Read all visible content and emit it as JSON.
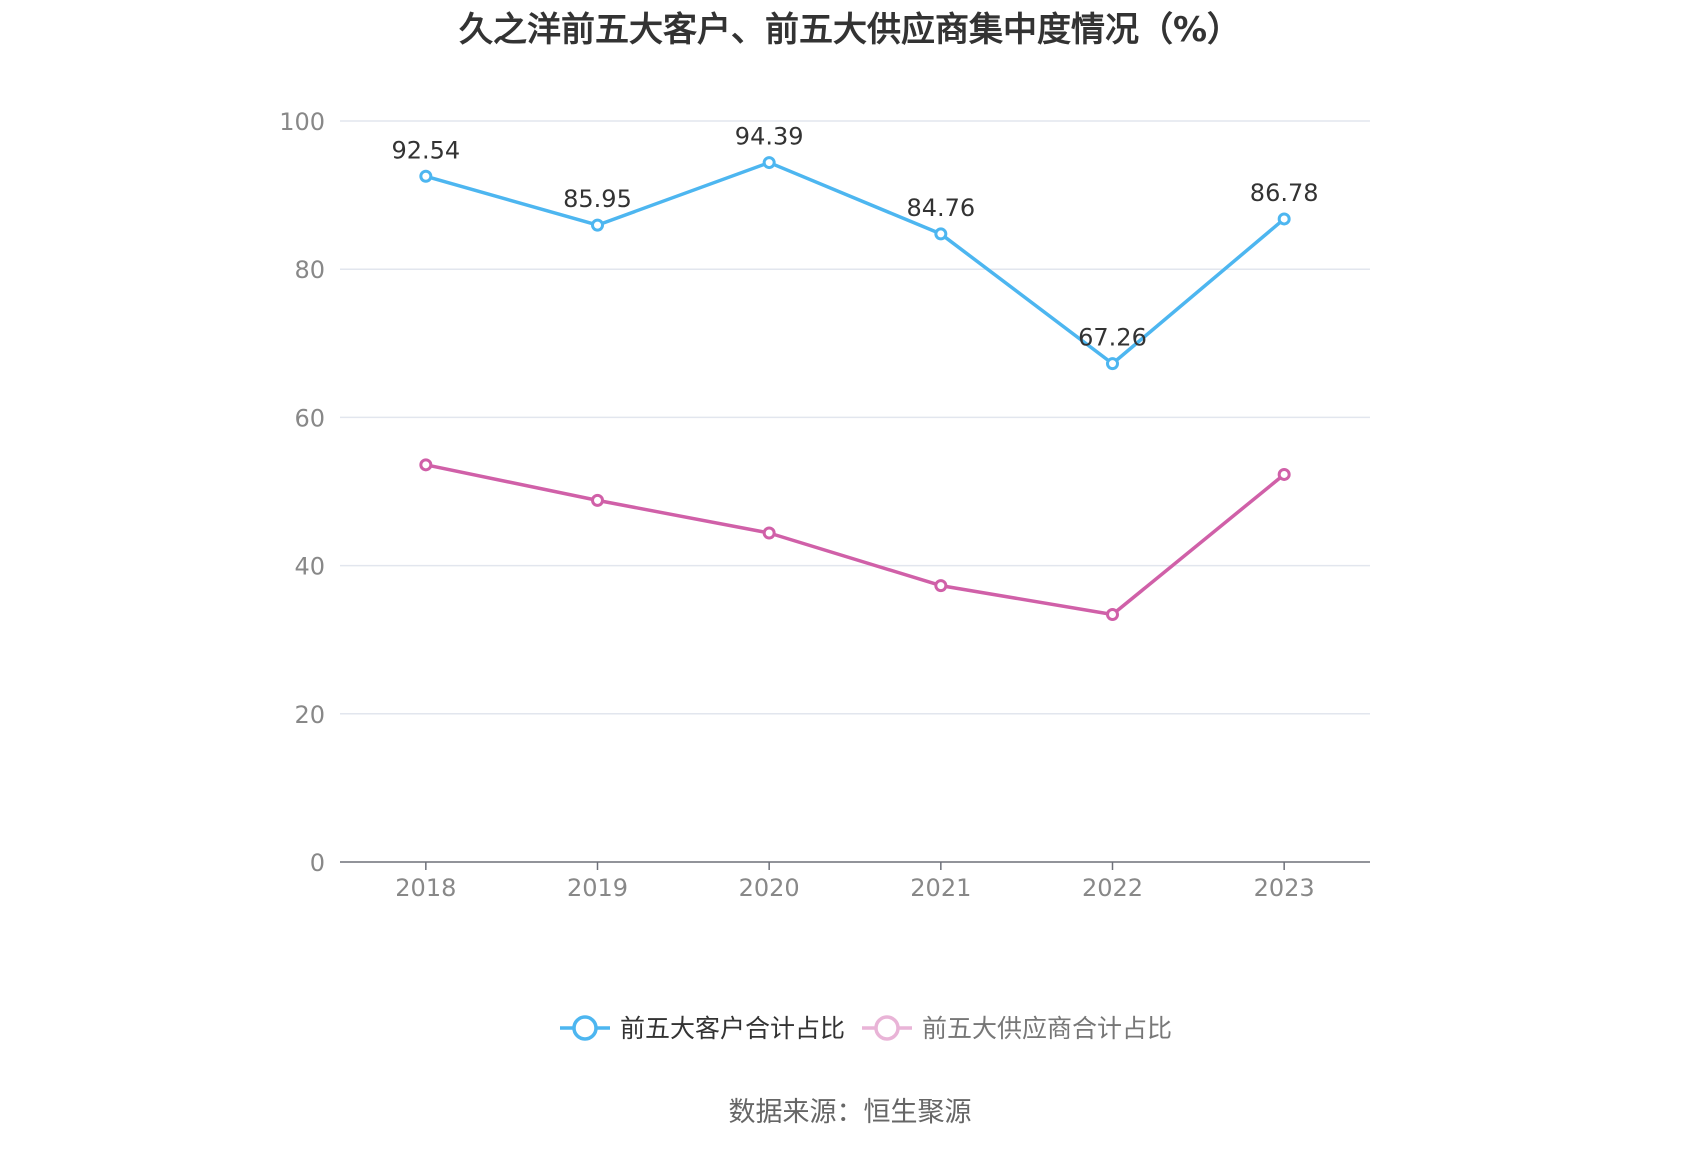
{
  "chart_data": {
    "type": "line",
    "title": "久之洋前五大客户、前五大供应商集中度情况（%）",
    "categories": [
      "2018",
      "2019",
      "2020",
      "2021",
      "2022",
      "2023"
    ],
    "ylim": [
      0,
      100
    ],
    "yticks": [
      0,
      20,
      40,
      60,
      80,
      100
    ],
    "grid": true,
    "legend_position": "bottom",
    "series": [
      {
        "name": "前五大客户合计占比",
        "values": [
          92.54,
          85.95,
          94.39,
          84.76,
          67.26,
          86.78
        ],
        "labels": [
          "92.54",
          "85.95",
          "94.39",
          "84.76",
          "67.26",
          "86.78"
        ],
        "color": "#4db6f0",
        "legend_active": true
      },
      {
        "name": "前五大供应商合计占比",
        "values": [
          53.6,
          48.8,
          44.4,
          37.3,
          33.4,
          52.3
        ],
        "labels": [],
        "color": "#d060a8",
        "legend_active": false
      }
    ],
    "source": "数据来源：恒生聚源"
  }
}
